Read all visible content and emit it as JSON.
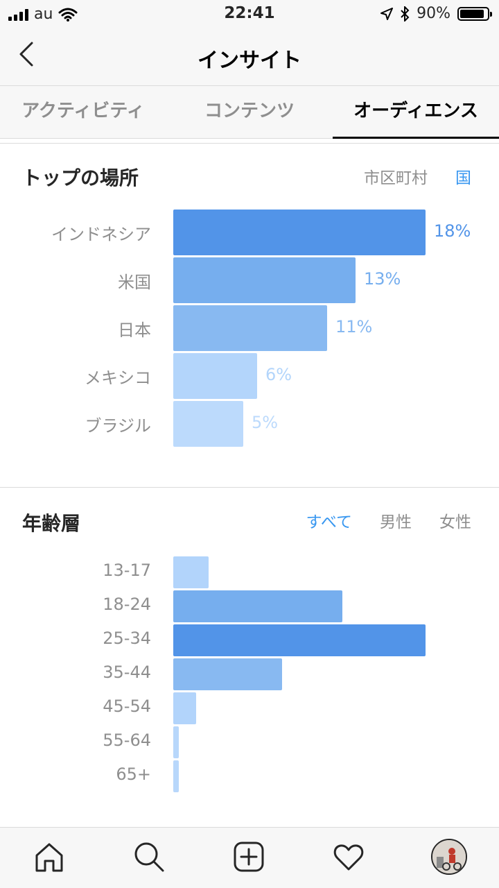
{
  "status_bar": {
    "carrier": "au",
    "time": "22:41",
    "battery": "90%",
    "battery_level": 0.9
  },
  "header": {
    "title": "インサイト",
    "back_icon": "chevron-left-icon"
  },
  "tabs": [
    {
      "label": "アクティビティ",
      "active": false
    },
    {
      "label": "コンテンツ",
      "active": false
    },
    {
      "label": "オーディエンス",
      "active": true
    }
  ],
  "top_locations": {
    "title": "トップの場所",
    "filters": [
      {
        "label": "市区町村",
        "active": false
      },
      {
        "label": "国",
        "active": true
      }
    ],
    "rows": [
      {
        "label": "インドネシア",
        "value": 18,
        "pct": "18%",
        "color": "#5294e8",
        "text_color": "#5294e8"
      },
      {
        "label": "米国",
        "value": 13,
        "pct": "13%",
        "color": "#76aeee",
        "text_color": "#76aeee"
      },
      {
        "label": "日本",
        "value": 11,
        "pct": "11%",
        "color": "#88b9f1",
        "text_color": "#88b9f1"
      },
      {
        "label": "メキシコ",
        "value": 6,
        "pct": "6%",
        "color": "#b3d5fb",
        "text_color": "#b3d5fb"
      },
      {
        "label": "ブラジル",
        "value": 5,
        "pct": "5%",
        "color": "#bcdafc",
        "text_color": "#bcdafc"
      }
    ]
  },
  "age_range": {
    "title": "年齢層",
    "filters": [
      {
        "label": "すべて",
        "active": true
      },
      {
        "label": "男性",
        "active": false
      },
      {
        "label": "女性",
        "active": false
      }
    ],
    "rows": [
      {
        "label": "13-17",
        "share": 0.14,
        "color": "#b2d4fb"
      },
      {
        "label": "18-24",
        "share": 0.67,
        "color": "#76aeee"
      },
      {
        "label": "25-34",
        "share": 1.0,
        "color": "#5294e8"
      },
      {
        "label": "35-44",
        "share": 0.43,
        "color": "#88b9f1"
      },
      {
        "label": "45-54",
        "share": 0.09,
        "color": "#b2d4fb"
      },
      {
        "label": "55-64",
        "share": 0.02,
        "color": "#b8d7fb"
      },
      {
        "label": "65+",
        "share": 0.02,
        "color": "#b8d7fb"
      }
    ]
  },
  "bottom_nav": [
    {
      "name": "home-icon"
    },
    {
      "name": "search-icon"
    },
    {
      "name": "add-post-icon"
    },
    {
      "name": "heart-icon"
    },
    {
      "name": "profile-avatar"
    }
  ]
}
